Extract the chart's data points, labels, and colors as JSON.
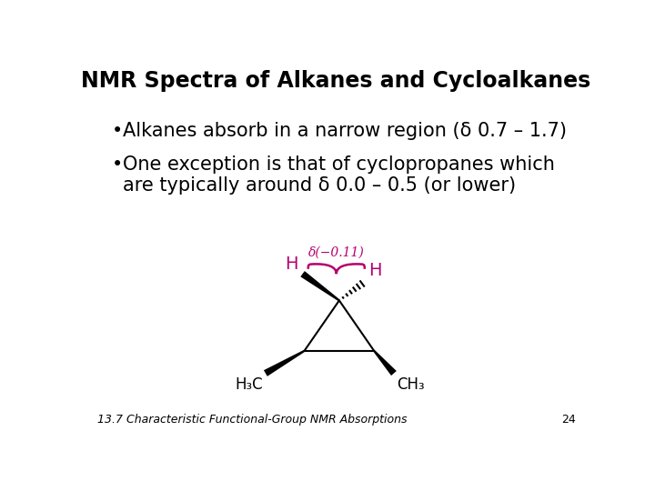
{
  "title": "NMR Spectra of Alkanes and Cycloalkanes",
  "bullet1": "Alkanes absorb in a narrow region (δ 0.7 – 1.7)",
  "bullet2_line1": "One exception is that of cyclopropanes which",
  "bullet2_line2": "are typically around δ 0.0 – 0.5 (or lower)",
  "footer": "13.7 Characteristic Functional-Group NMR Absorptions",
  "page_number": "24",
  "bg_color": "#ffffff",
  "text_color": "#000000",
  "title_fontsize": 17,
  "bullet_fontsize": 15,
  "footer_fontsize": 9,
  "annotation_color": "#b5006e",
  "h_label_color": "#b5006e",
  "delta_label": "δ(−0.11)"
}
